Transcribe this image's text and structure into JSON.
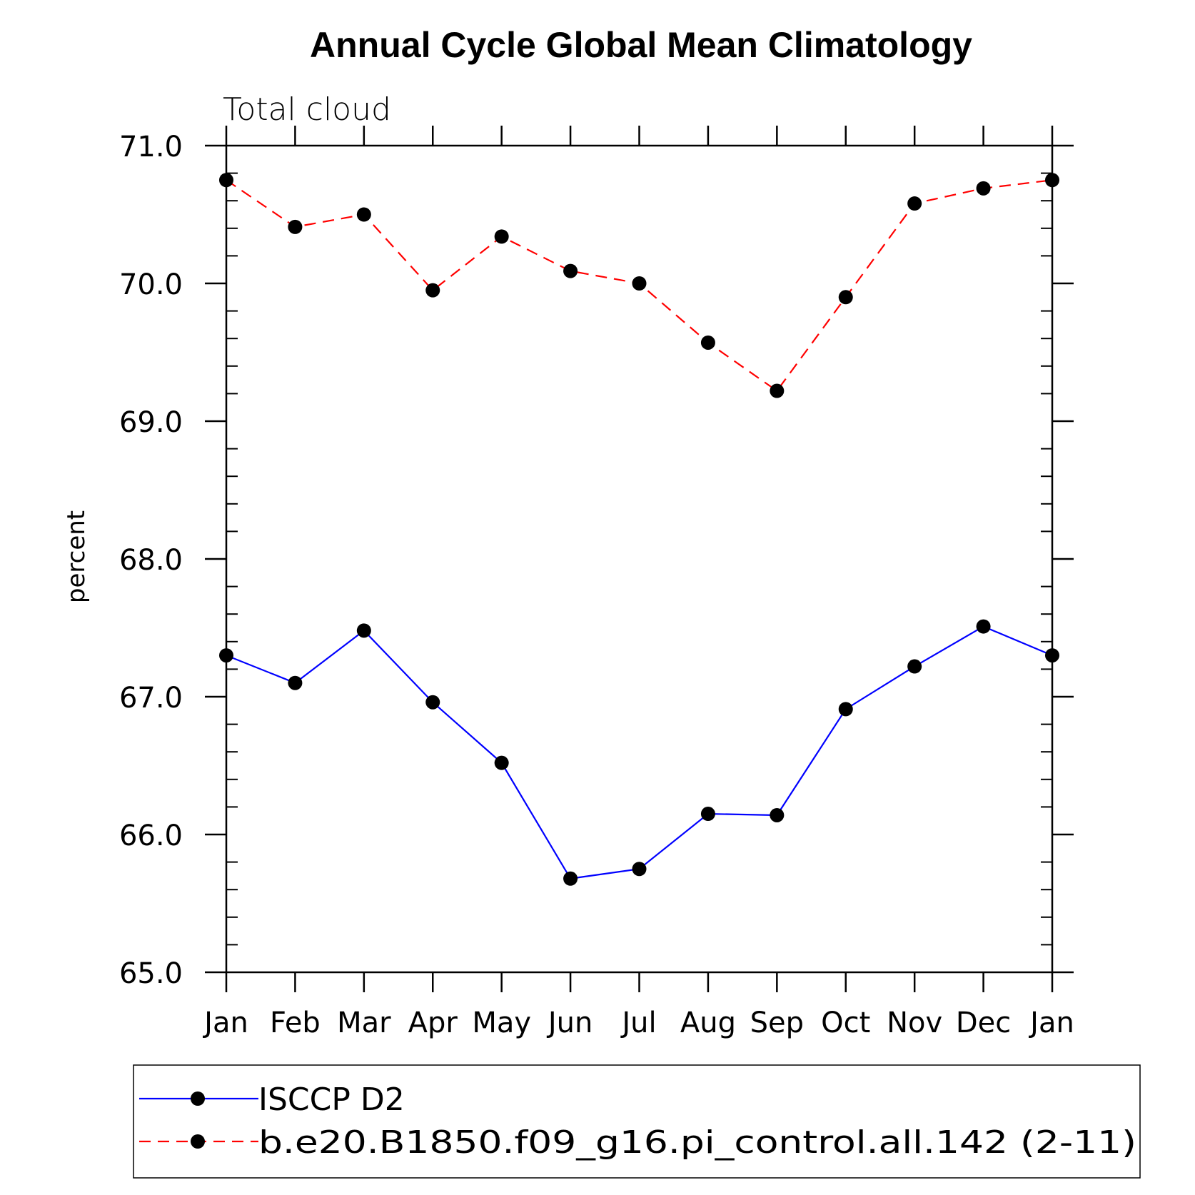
{
  "chart_data": {
    "type": "line",
    "title": "Annual Cycle Global Mean Climatology",
    "subtitle": "Total cloud",
    "xlabel": "",
    "ylabel": "percent",
    "categories": [
      "Jan",
      "Feb",
      "Mar",
      "Apr",
      "May",
      "Jun",
      "Jul",
      "Aug",
      "Sep",
      "Oct",
      "Nov",
      "Dec",
      "Jan"
    ],
    "ylim": [
      65.0,
      71.0
    ],
    "yticks": [
      "65.0",
      "66.0",
      "67.0",
      "68.0",
      "69.0",
      "70.0",
      "71.0"
    ],
    "series": [
      {
        "name": "ISCCP D2",
        "color": "#0000ff",
        "dash": "solid",
        "values": [
          67.3,
          67.1,
          67.48,
          66.96,
          66.52,
          65.68,
          65.75,
          66.15,
          66.14,
          66.91,
          67.22,
          67.51,
          67.3
        ]
      },
      {
        "name": "b.e20.B1850.f09_g16.pi_control.all.142 (2-11)",
        "color": "#ff0000",
        "dash": "dashed",
        "values": [
          70.75,
          70.41,
          70.5,
          69.95,
          70.34,
          70.09,
          70.0,
          69.57,
          69.22,
          69.9,
          70.58,
          70.69,
          70.75
        ]
      }
    ]
  }
}
